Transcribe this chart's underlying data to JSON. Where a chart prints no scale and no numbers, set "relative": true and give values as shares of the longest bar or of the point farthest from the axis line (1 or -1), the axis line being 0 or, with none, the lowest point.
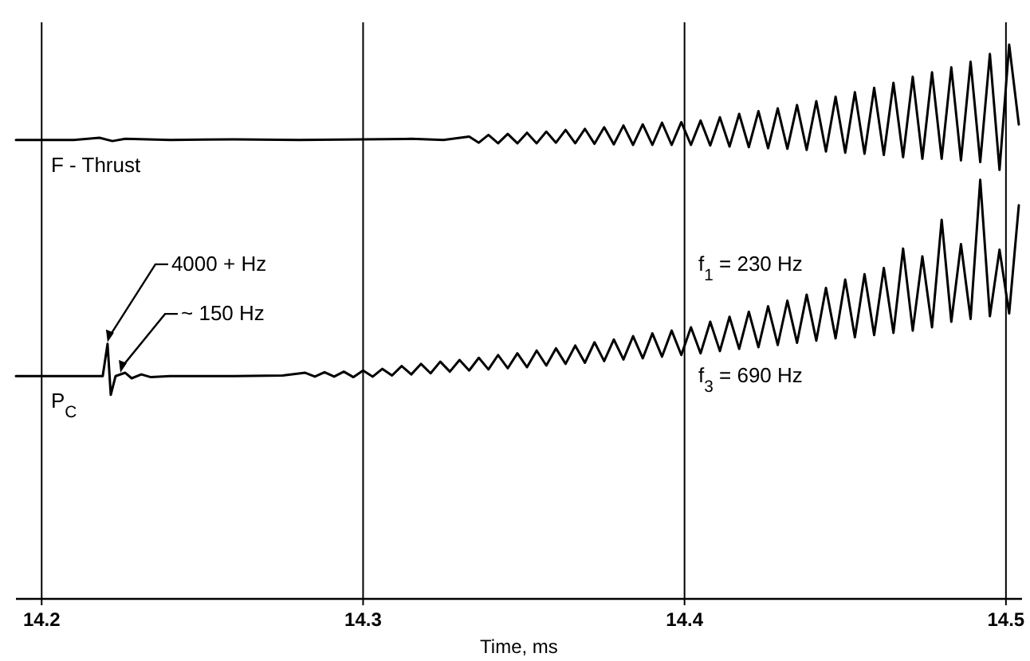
{
  "chart_data": {
    "type": "line",
    "relative": true,
    "xlabel": "Time, ms",
    "xlim": [
      14.192,
      14.505
    ],
    "xticks": [
      14.2,
      14.3,
      14.4,
      14.5
    ],
    "grid": "x",
    "marker": "none",
    "line_style": "solid",
    "series": [
      {
        "name": "F - Thrust",
        "color": "#000000",
        "x": [
          14.192,
          14.21,
          14.218,
          14.222,
          14.226,
          14.24,
          14.26,
          14.28,
          14.3,
          14.315,
          14.325,
          14.333,
          14.336,
          14.339,
          14.342,
          14.345,
          14.348,
          14.351,
          14.354,
          14.357,
          14.36,
          14.363,
          14.366,
          14.369,
          14.372,
          14.375,
          14.378,
          14.381,
          14.384,
          14.387,
          14.39,
          14.393,
          14.396,
          14.399,
          14.402,
          14.405,
          14.408,
          14.411,
          14.414,
          14.417,
          14.42,
          14.423,
          14.426,
          14.429,
          14.432,
          14.435,
          14.438,
          14.441,
          14.444,
          14.447,
          14.45,
          14.453,
          14.456,
          14.459,
          14.462,
          14.465,
          14.468,
          14.471,
          14.474,
          14.477,
          14.48,
          14.483,
          14.486,
          14.489,
          14.492,
          14.495,
          14.498,
          14.501,
          14.504
        ],
        "values": [
          0.828,
          0.828,
          0.832,
          0.826,
          0.83,
          0.828,
          0.829,
          0.828,
          0.829,
          0.83,
          0.828,
          0.834,
          0.823,
          0.837,
          0.822,
          0.839,
          0.822,
          0.841,
          0.822,
          0.843,
          0.823,
          0.846,
          0.822,
          0.848,
          0.821,
          0.851,
          0.82,
          0.854,
          0.819,
          0.856,
          0.819,
          0.859,
          0.819,
          0.86,
          0.819,
          0.863,
          0.818,
          0.869,
          0.816,
          0.875,
          0.815,
          0.88,
          0.813,
          0.885,
          0.812,
          0.891,
          0.81,
          0.898,
          0.807,
          0.906,
          0.805,
          0.914,
          0.803,
          0.922,
          0.801,
          0.931,
          0.797,
          0.942,
          0.794,
          0.95,
          0.794,
          0.959,
          0.791,
          0.969,
          0.788,
          0.983,
          0.774,
          1.0,
          0.856
        ]
      },
      {
        "name": "P$_{C}$",
        "color": "#000000",
        "x": [
          14.192,
          14.215,
          14.219,
          14.2205,
          14.2215,
          14.223,
          14.226,
          14.228,
          14.231,
          14.234,
          14.24,
          14.26,
          14.275,
          14.282,
          14.285,
          14.288,
          14.291,
          14.294,
          14.297,
          14.3,
          14.303,
          14.306,
          14.309,
          14.312,
          14.315,
          14.318,
          14.321,
          14.324,
          14.327,
          14.33,
          14.333,
          14.336,
          14.339,
          14.342,
          14.345,
          14.348,
          14.351,
          14.354,
          14.357,
          14.36,
          14.363,
          14.366,
          14.369,
          14.372,
          14.375,
          14.378,
          14.381,
          14.384,
          14.387,
          14.39,
          14.393,
          14.396,
          14.399,
          14.402,
          14.405,
          14.408,
          14.411,
          14.414,
          14.417,
          14.42,
          14.423,
          14.426,
          14.429,
          14.432,
          14.435,
          14.438,
          14.441,
          14.444,
          14.447,
          14.45,
          14.453,
          14.456,
          14.459,
          14.462,
          14.465,
          14.468,
          14.471,
          14.474,
          14.477,
          14.48,
          14.483,
          14.486,
          14.489,
          14.492,
          14.495,
          14.498,
          14.501,
          14.504
        ],
        "values": [
          0.402,
          0.402,
          0.402,
          0.46,
          0.368,
          0.402,
          0.408,
          0.398,
          0.405,
          0.4,
          0.402,
          0.402,
          0.403,
          0.408,
          0.401,
          0.409,
          0.401,
          0.41,
          0.4,
          0.412,
          0.401,
          0.415,
          0.403,
          0.42,
          0.405,
          0.424,
          0.407,
          0.428,
          0.41,
          0.431,
          0.412,
          0.435,
          0.414,
          0.44,
          0.416,
          0.443,
          0.418,
          0.448,
          0.421,
          0.452,
          0.424,
          0.457,
          0.426,
          0.463,
          0.429,
          0.468,
          0.432,
          0.474,
          0.434,
          0.479,
          0.437,
          0.484,
          0.44,
          0.49,
          0.443,
          0.5,
          0.447,
          0.509,
          0.451,
          0.518,
          0.454,
          0.528,
          0.458,
          0.538,
          0.462,
          0.549,
          0.466,
          0.561,
          0.47,
          0.576,
          0.472,
          0.586,
          0.476,
          0.597,
          0.48,
          0.632,
          0.484,
          0.618,
          0.49,
          0.684,
          0.5,
          0.64,
          0.505,
          0.756,
          0.51,
          0.63,
          0.515,
          0.71
        ]
      }
    ],
    "annotations": [
      {
        "text": "4000 + Hz",
        "x": 14.2205,
        "y": 0.46
      },
      {
        "text": "~ 150 Hz",
        "x": 14.2245,
        "y": 0.405
      },
      "f$_{1}$ = 230 Hz",
      "f$_{3}$ = 690 Hz"
    ]
  }
}
